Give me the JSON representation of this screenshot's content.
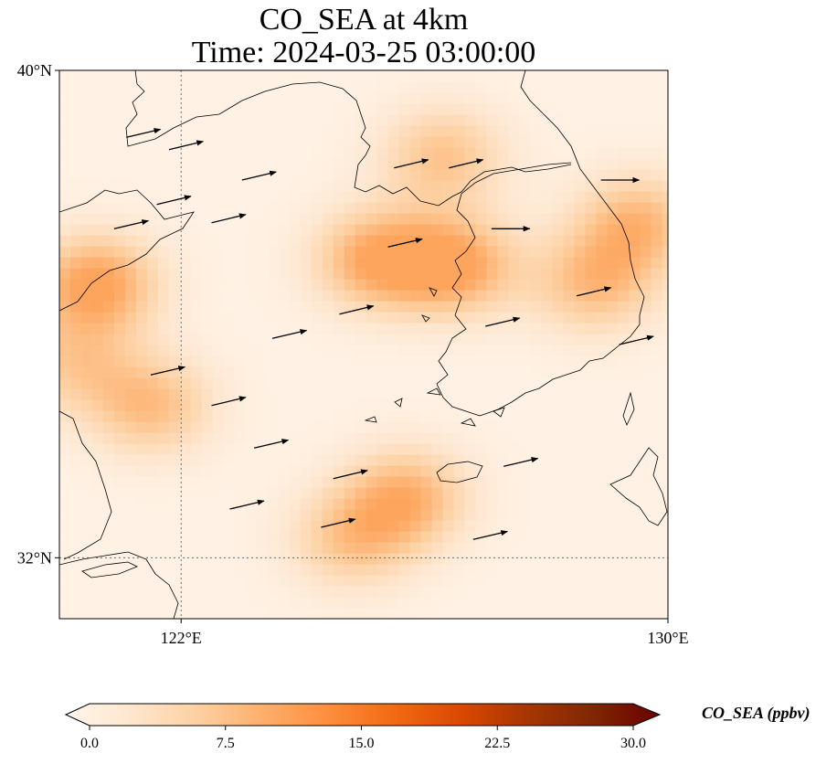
{
  "title_line1": "CO_SEA at 4km",
  "title_line2": "Time: 2024-03-25 03:00:00",
  "map": {
    "lon_range": [
      120,
      130
    ],
    "lat_range": [
      31,
      40
    ],
    "lat_ticks": [
      {
        "value": 40,
        "label": "40°N"
      },
      {
        "value": 32,
        "label": "32°N"
      }
    ],
    "lon_ticks": [
      {
        "value": 122,
        "label": "122°E"
      },
      {
        "value": 130,
        "label": "130°E"
      }
    ],
    "gridlines": true,
    "coastlines": true,
    "field_max_ppbv": 11
  },
  "colorbar": {
    "title": "CO_SEA (ppbv)",
    "min": 0,
    "max": 30,
    "ticks": [
      "0.0",
      "7.5",
      "15.0",
      "22.5",
      "30.0"
    ],
    "extend": "both",
    "colormap": "Oranges",
    "colors": [
      "#fff5eb",
      "#fee6ce",
      "#fdd0a2",
      "#fdae6b",
      "#fd8d3c",
      "#f16913",
      "#d94801",
      "#a63603",
      "#7f2704",
      "#6b0000"
    ]
  },
  "chart_data": {
    "type": "heatmap",
    "variable": "CO_SEA",
    "units": "ppbv",
    "x_unit": "degrees east",
    "y_unit": "degrees north",
    "hotspots": [
      {
        "lon": 120.6,
        "lat": 36.5,
        "value": 10.5
      },
      {
        "lon": 125.2,
        "lat": 36.9,
        "value": 9.5
      },
      {
        "lon": 126.5,
        "lat": 36.8,
        "value": 10.0
      },
      {
        "lon": 121.5,
        "lat": 34.5,
        "value": 7.5
      },
      {
        "lon": 125.7,
        "lat": 33.0,
        "value": 8.5
      },
      {
        "lon": 126.3,
        "lat": 38.6,
        "value": 7.0
      },
      {
        "lon": 129.5,
        "lat": 37.5,
        "value": 8.0
      },
      {
        "lon": 128.8,
        "lat": 36.5,
        "value": 7.5
      },
      {
        "lon": 124.8,
        "lat": 32.3,
        "value": 6.5
      },
      {
        "lon": 120.2,
        "lat": 35.2,
        "value": 5.5
      }
    ],
    "wind_vectors": [
      {
        "lon": 121.1,
        "lat": 38.9,
        "u": 2,
        "v": 1
      },
      {
        "lon": 121.8,
        "lat": 38.7,
        "u": 2,
        "v": 1
      },
      {
        "lon": 123.0,
        "lat": 38.2,
        "u": 2,
        "v": 1
      },
      {
        "lon": 121.6,
        "lat": 37.8,
        "u": 2,
        "v": 1
      },
      {
        "lon": 120.9,
        "lat": 37.4,
        "u": 2,
        "v": 1
      },
      {
        "lon": 122.5,
        "lat": 37.5,
        "u": 2,
        "v": 1
      },
      {
        "lon": 125.5,
        "lat": 38.4,
        "u": 2,
        "v": 1
      },
      {
        "lon": 126.4,
        "lat": 38.4,
        "u": 2,
        "v": 1
      },
      {
        "lon": 125.4,
        "lat": 37.1,
        "u": 2,
        "v": 1
      },
      {
        "lon": 127.1,
        "lat": 37.4,
        "u": 2,
        "v": 0
      },
      {
        "lon": 124.6,
        "lat": 36.0,
        "u": 2,
        "v": 1
      },
      {
        "lon": 123.5,
        "lat": 35.6,
        "u": 2,
        "v": 1
      },
      {
        "lon": 121.5,
        "lat": 35.0,
        "u": 2,
        "v": 1
      },
      {
        "lon": 122.5,
        "lat": 34.5,
        "u": 2,
        "v": 1
      },
      {
        "lon": 123.2,
        "lat": 33.8,
        "u": 2,
        "v": 1
      },
      {
        "lon": 124.5,
        "lat": 33.3,
        "u": 2,
        "v": 1
      },
      {
        "lon": 122.8,
        "lat": 32.8,
        "u": 2,
        "v": 1
      },
      {
        "lon": 124.3,
        "lat": 32.5,
        "u": 2,
        "v": 1
      },
      {
        "lon": 126.8,
        "lat": 32.3,
        "u": 2,
        "v": 1
      },
      {
        "lon": 127.3,
        "lat": 33.5,
        "u": 2,
        "v": 1
      },
      {
        "lon": 128.5,
        "lat": 36.3,
        "u": 2,
        "v": 1
      },
      {
        "lon": 129.2,
        "lat": 35.5,
        "u": 2,
        "v": 1
      },
      {
        "lon": 127.0,
        "lat": 35.8,
        "u": 2,
        "v": 1
      },
      {
        "lon": 128.9,
        "lat": 38.2,
        "u": 2,
        "v": 0
      }
    ],
    "lon_range": [
      120,
      130
    ],
    "lat_range": [
      31,
      40
    ]
  }
}
